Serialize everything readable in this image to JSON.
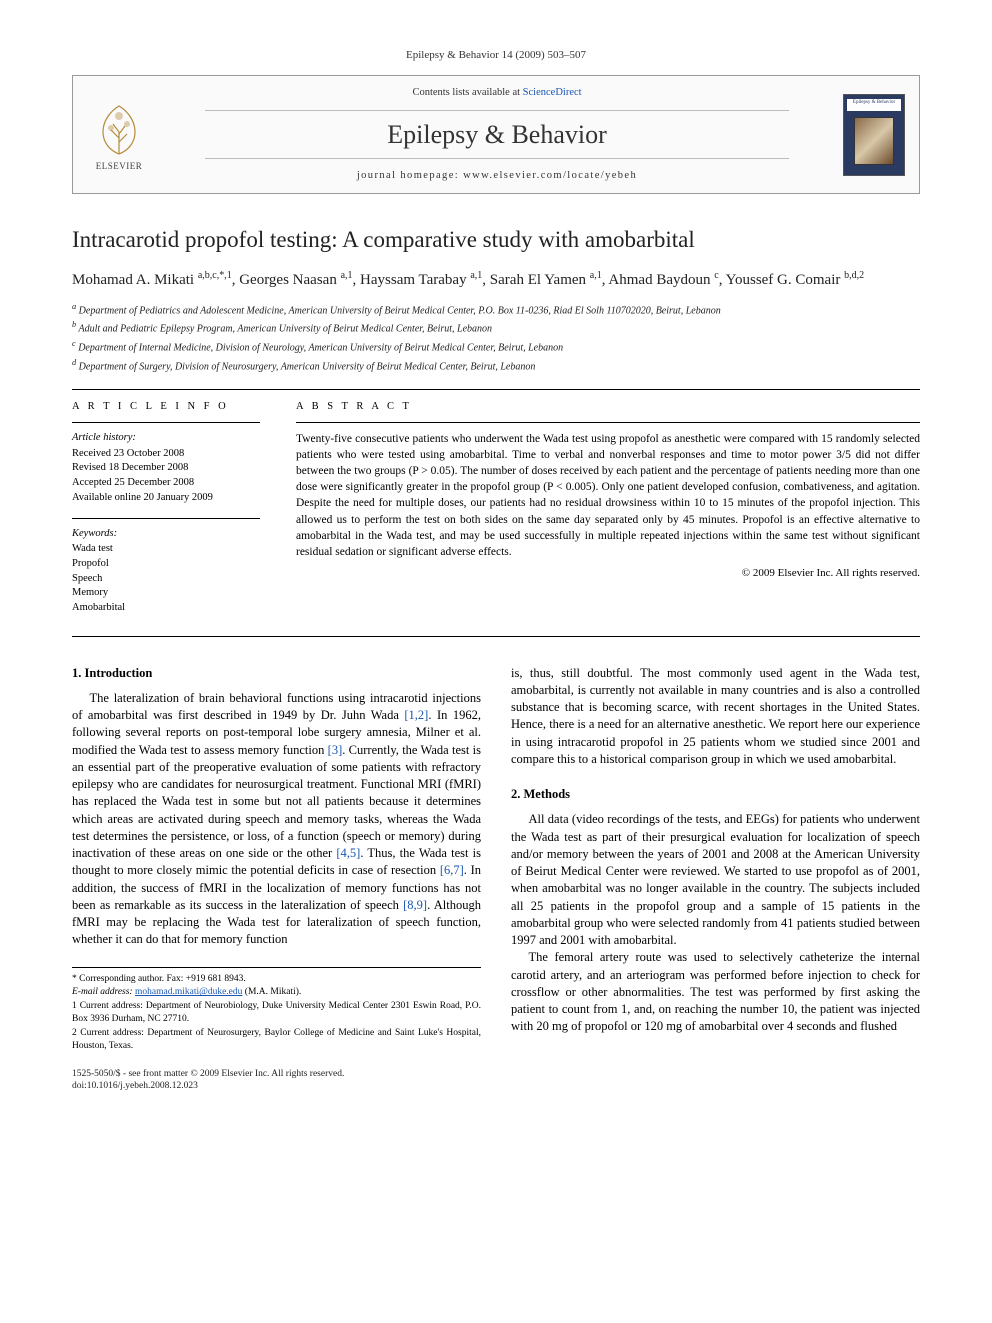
{
  "journal_ref_line": "Epilepsy & Behavior 14 (2009) 503–507",
  "header": {
    "contents_prefix": "Contents lists available at ",
    "contents_link": "ScienceDirect",
    "journal_name": "Epilepsy & Behavior",
    "homepage_prefix": "journal homepage: ",
    "homepage_url": "www.elsevier.com/locate/yebeh",
    "elsevier_label": "ELSEVIER",
    "cover_title": "Epilepsy & Behavior"
  },
  "title": "Intracarotid propofol testing: A comparative study with amobarbital",
  "authors_html": "Mohamad A. Mikati <sup>a,b,c,*,1</sup>, Georges Naasan <sup>a,1</sup>, Hayssam Tarabay <sup>a,1</sup>, Sarah El Yamen <sup>a,1</sup>, Ahmad Baydoun <sup>c</sup>, Youssef G. Comair <sup>b,d,2</sup>",
  "affiliations": [
    "a Department of Pediatrics and Adolescent Medicine, American University of Beirut Medical Center, P.O. Box 11-0236, Riad El Solh 110702020, Beirut, Lebanon",
    "b Adult and Pediatric Epilepsy Program, American University of Beirut Medical Center, Beirut, Lebanon",
    "c Department of Internal Medicine, Division of Neurology, American University of Beirut Medical Center, Beirut, Lebanon",
    "d Department of Surgery, Division of Neurosurgery, American University of Beirut Medical Center, Beirut, Lebanon"
  ],
  "info": {
    "head": "A R T I C L E   I N F O",
    "history_label": "Article history:",
    "history": [
      "Received 23 October 2008",
      "Revised 18 December 2008",
      "Accepted 25 December 2008",
      "Available online 20 January 2009"
    ],
    "keywords_label": "Keywords:",
    "keywords": [
      "Wada test",
      "Propofol",
      "Speech",
      "Memory",
      "Amobarbital"
    ]
  },
  "abstract": {
    "head": "A B S T R A C T",
    "text": "Twenty-five consecutive patients who underwent the Wada test using propofol as anesthetic were compared with 15 randomly selected patients who were tested using amobarbital. Time to verbal and nonverbal responses and time to motor power 3/5 did not differ between the two groups (P > 0.05). The number of doses received by each patient and the percentage of patients needing more than one dose were significantly greater in the propofol group (P < 0.005). Only one patient developed confusion, combativeness, and agitation. Despite the need for multiple doses, our patients had no residual drowsiness within 10 to 15 minutes of the propofol injection. This allowed us to perform the test on both sides on the same day separated only by 45 minutes. Propofol is an effective alternative to amobarbital in the Wada test, and may be used successfully in multiple repeated injections within the same test without significant residual sedation or significant adverse effects.",
    "copyright": "© 2009 Elsevier Inc. All rights reserved."
  },
  "body": {
    "sec1_head": "1. Introduction",
    "sec1_p1a": "The lateralization of brain behavioral functions using intracarotid injections of amobarbital was first described in 1949 by Dr. Juhn Wada ",
    "ref_1_2": "[1,2]",
    "sec1_p1b": ". In 1962, following several reports on post-temporal lobe surgery amnesia, Milner et al. modified the Wada test to assess memory function ",
    "ref_3": "[3]",
    "sec1_p1c": ". Currently, the Wada test is an essential part of the preoperative evaluation of some patients with refractory epilepsy who are candidates for neurosurgical treatment. Functional MRI (fMRI) has replaced the Wada test in some but not all patients because it determines which areas are activated during speech and memory tasks, whereas the Wada test determines the persistence, or loss, of a function (speech or memory) during inactivation of these areas on one side or the other ",
    "ref_4_5": "[4,5]",
    "sec1_p1d": ". Thus, the Wada test is thought to more closely mimic the potential deficits in case of resection ",
    "ref_6_7": "[6,7]",
    "sec1_p1e": ". In addition, the success of fMRI in the localization of memory functions has not been as remarkable as its success in the lateralization of speech ",
    "ref_8_9": "[8,9]",
    "sec1_p1f": ". Although fMRI may be replacing the Wada test for lateralization of speech function, whether it can do that for memory function",
    "col2_p1": "is, thus, still doubtful. The most commonly used agent in the Wada test, amobarbital, is currently not available in many countries and is also a controlled substance that is becoming scarce, with recent shortages in the United States. Hence, there is a need for an alternative anesthetic. We report here our experience in using intracarotid propofol in 25 patients whom we studied since 2001 and compare this to a historical comparison group in which we used amobarbital.",
    "sec2_head": "2. Methods",
    "sec2_p1": "All data (video recordings of the tests, and EEGs) for patients who underwent the Wada test as part of their presurgical evaluation for localization of speech and/or memory between the years of 2001 and 2008 at the American University of Beirut Medical Center were reviewed. We started to use propofol as of 2001, when amobarbital was no longer available in the country. The subjects included all 25 patients in the propofol group and a sample of 15 patients in the amobarbital group who were selected randomly from 41 patients studied between 1997 and 2001 with amobarbital.",
    "sec2_p2": "The femoral artery route was used to selectively catheterize the internal carotid artery, and an arteriogram was performed before injection to check for crossflow or other abnormalities. The test was performed by first asking the patient to count from 1, and, on reaching the number 10, the patient was injected with 20 mg of propofol or 120 mg of amobarbital over 4 seconds and flushed"
  },
  "footnotes": {
    "corr": "* Corresponding author. Fax: +919 681 8943.",
    "email_label": "E-mail address: ",
    "email": "mohamad.mikati@duke.edu",
    "email_suffix": " (M.A. Mikati).",
    "n1": "1  Current address: Department of Neurobiology, Duke University Medical Center 2301 Eswin Road, P.O. Box 3936 Durham, NC 27710.",
    "n2": "2  Current address: Department of Neurosurgery, Baylor College of Medicine and Saint Luke's Hospital, Houston, Texas."
  },
  "bottom": {
    "line1": "1525-5050/$ - see front matter © 2009 Elsevier Inc. All rights reserved.",
    "line2": "doi:10.1016/j.yebeh.2008.12.023"
  },
  "colors": {
    "link": "#1a56b0",
    "text": "#000000",
    "border": "#999999"
  }
}
